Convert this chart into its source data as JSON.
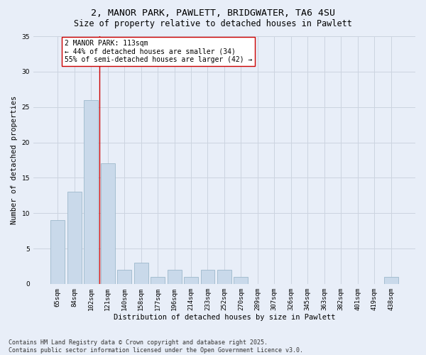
{
  "title1": "2, MANOR PARK, PAWLETT, BRIDGWATER, TA6 4SU",
  "title2": "Size of property relative to detached houses in Pawlett",
  "xlabel": "Distribution of detached houses by size in Pawlett",
  "ylabel": "Number of detached properties",
  "categories": [
    "65sqm",
    "84sqm",
    "102sqm",
    "121sqm",
    "140sqm",
    "158sqm",
    "177sqm",
    "196sqm",
    "214sqm",
    "233sqm",
    "252sqm",
    "270sqm",
    "289sqm",
    "307sqm",
    "326sqm",
    "345sqm",
    "363sqm",
    "382sqm",
    "401sqm",
    "419sqm",
    "438sqm"
  ],
  "values": [
    9,
    13,
    26,
    17,
    2,
    3,
    1,
    2,
    1,
    2,
    2,
    1,
    0,
    0,
    0,
    0,
    0,
    0,
    0,
    0,
    1
  ],
  "bar_color": "#c9d9ea",
  "bar_edge_color": "#9db8cc",
  "vline_x": 2.5,
  "vline_color": "#cc0000",
  "annotation_text": "2 MANOR PARK: 113sqm\n← 44% of detached houses are smaller (34)\n55% of semi-detached houses are larger (42) →",
  "annotation_box_facecolor": "#ffffff",
  "annotation_box_edgecolor": "#cc0000",
  "ylim": [
    0,
    35
  ],
  "yticks": [
    0,
    5,
    10,
    15,
    20,
    25,
    30,
    35
  ],
  "grid_color": "#ccd4e0",
  "background_color": "#e8eef8",
  "footer_text": "Contains HM Land Registry data © Crown copyright and database right 2025.\nContains public sector information licensed under the Open Government Licence v3.0.",
  "title_fontsize": 9.5,
  "subtitle_fontsize": 8.5,
  "axis_label_fontsize": 7.5,
  "tick_fontsize": 6.5,
  "annotation_fontsize": 7,
  "footer_fontsize": 6
}
